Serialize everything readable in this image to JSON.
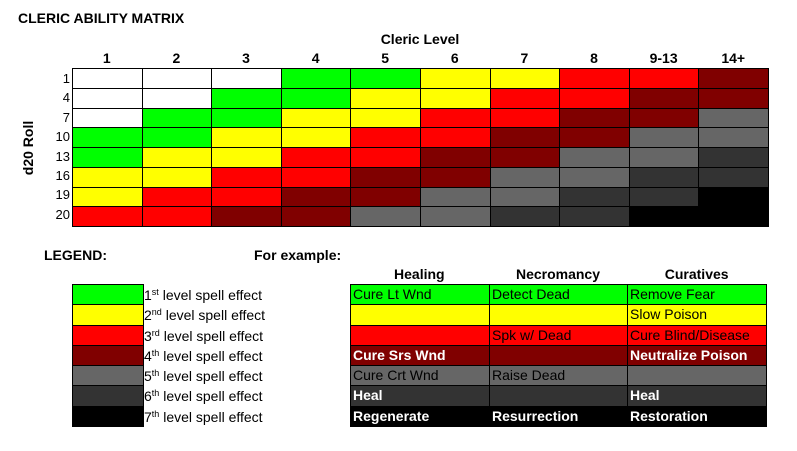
{
  "title": "CLERIC ABILITY MATRIX",
  "x_axis_label": "Cleric Level",
  "y_axis_label": "d20 Roll",
  "columns": [
    "1",
    "2",
    "3",
    "4",
    "5",
    "6",
    "7",
    "8",
    "9-13",
    "14+"
  ],
  "rows": [
    "1",
    "4",
    "7",
    "10",
    "13",
    "16",
    "19",
    "20"
  ],
  "level_colors": {
    "0": "#ffffff",
    "1": "#00ff00",
    "2": "#ffff00",
    "3": "#ff0000",
    "4": "#800000",
    "5": "#666666",
    "6": "#333333",
    "7": "#000000"
  },
  "matrix": [
    [
      0,
      0,
      0,
      1,
      1,
      2,
      2,
      3,
      3,
      4
    ],
    [
      0,
      0,
      1,
      1,
      2,
      2,
      3,
      3,
      4,
      4
    ],
    [
      0,
      1,
      1,
      2,
      2,
      3,
      3,
      4,
      4,
      5
    ],
    [
      1,
      1,
      2,
      2,
      3,
      3,
      4,
      4,
      5,
      5
    ],
    [
      1,
      2,
      2,
      3,
      3,
      4,
      4,
      5,
      5,
      6
    ],
    [
      2,
      2,
      3,
      3,
      4,
      4,
      5,
      5,
      6,
      6
    ],
    [
      2,
      3,
      3,
      4,
      4,
      5,
      5,
      6,
      6,
      7
    ],
    [
      3,
      3,
      4,
      4,
      5,
      5,
      6,
      6,
      7,
      7
    ]
  ],
  "legend": {
    "title": "LEGEND:",
    "items": [
      {
        "num": "1",
        "suffix": "st",
        "text": " level spell effect",
        "color": "#00ff00"
      },
      {
        "num": "2",
        "suffix": "nd",
        "text": " level spell effect",
        "color": "#ffff00"
      },
      {
        "num": "3",
        "suffix": "rd",
        "text": " level spell effect",
        "color": "#ff0000"
      },
      {
        "num": "4",
        "suffix": "th",
        "text": " level spell effect",
        "color": "#800000"
      },
      {
        "num": "5",
        "suffix": "th",
        "text": " level spell effect",
        "color": "#666666"
      },
      {
        "num": "6",
        "suffix": "th",
        "text": " level spell effect",
        "color": "#333333"
      },
      {
        "num": "7",
        "suffix": "th",
        "text": " level spell effect",
        "color": "#000000"
      }
    ]
  },
  "example": {
    "title": "For example:",
    "headers": [
      "Healing",
      "Necromancy",
      "Curatives"
    ],
    "rows": [
      {
        "level": 1,
        "cells": [
          "Cure Lt Wnd",
          "Detect Dead",
          "Remove Fear"
        ],
        "text_color": "#000000",
        "bold": false
      },
      {
        "level": 2,
        "cells": [
          "",
          "",
          "Slow Poison"
        ],
        "text_color": "#000000",
        "bold": false
      },
      {
        "level": 3,
        "cells": [
          "",
          "Spk w/ Dead",
          "Cure Blind/Disease"
        ],
        "text_color": "#000000",
        "bold": false
      },
      {
        "level": 4,
        "cells": [
          "Cure Srs Wnd",
          "",
          "Neutralize Poison"
        ],
        "text_color": "#ffffff",
        "bold": true
      },
      {
        "level": 5,
        "cells": [
          "Cure Crt Wnd",
          "Raise Dead",
          ""
        ],
        "text_color": "#000000",
        "bold": false
      },
      {
        "level": 6,
        "cells": [
          "Heal",
          "",
          "Heal"
        ],
        "text_color": "#ffffff",
        "bold": true
      },
      {
        "level": 7,
        "cells": [
          "Regenerate",
          "Resurrection",
          "Restoration"
        ],
        "text_color": "#ffffff",
        "bold": true
      }
    ]
  }
}
